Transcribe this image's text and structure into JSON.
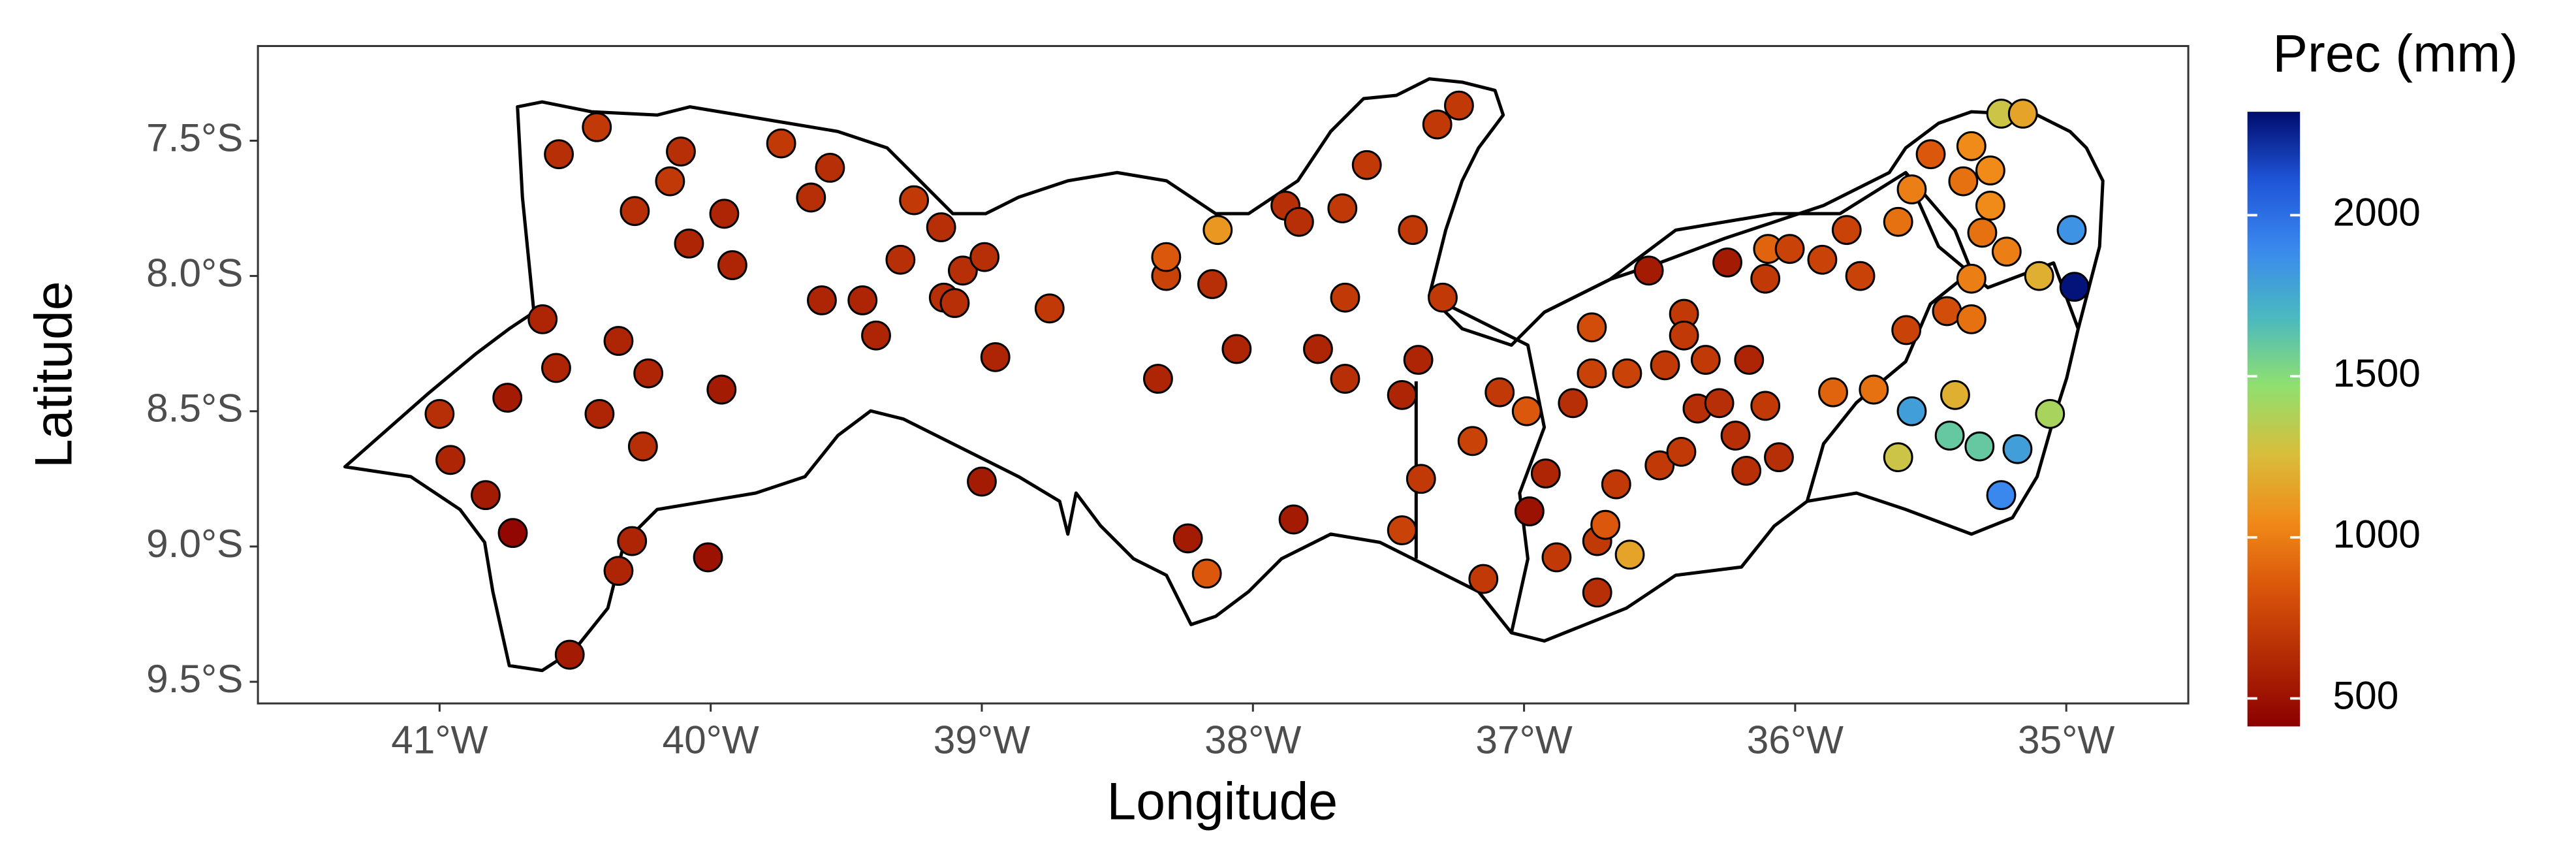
{
  "chart_data": {
    "type": "scatter",
    "x_label": "Longitude",
    "y_label": "Latitude",
    "xlim": [
      -41.67,
      -34.55
    ],
    "ylim": [
      -9.58,
      -7.15
    ],
    "xticks": [
      {
        "value": -41,
        "label": "41°W"
      },
      {
        "value": -40,
        "label": "40°W"
      },
      {
        "value": -39,
        "label": "39°W"
      },
      {
        "value": -38,
        "label": "38°W"
      },
      {
        "value": -37,
        "label": "37°W"
      },
      {
        "value": -36,
        "label": "36°W"
      },
      {
        "value": -35,
        "label": "35°W"
      }
    ],
    "yticks": [
      {
        "value": -7.5,
        "label": "7.5°S"
      },
      {
        "value": -8,
        "label": "8.0°S"
      },
      {
        "value": -8.5,
        "label": "8.5°S"
      },
      {
        "value": -9,
        "label": "9.0°S"
      },
      {
        "value": -9.5,
        "label": "9.5°S"
      }
    ],
    "grid": true,
    "colorbar": {
      "title": "Prec (mm)",
      "lim": [
        413,
        2321
      ],
      "ticks": [
        500,
        1000,
        1500,
        2000
      ],
      "colors": [
        "#8b0000",
        "#b22a05",
        "#d9540a",
        "#f08a18",
        "#d8be3c",
        "#8fe070",
        "#4ab8c0",
        "#3a88ee",
        "#1f55d8",
        "#000c6e"
      ]
    },
    "x": [
      -41.0,
      -40.96,
      -40.83,
      -40.73,
      -40.75,
      -40.62,
      -40.57,
      -40.56,
      -40.42,
      -40.41,
      -40.52,
      -40.34,
      -40.34,
      -40.29,
      -40.28,
      -40.23,
      -40.25,
      -40.15,
      -40.11,
      -40.08,
      -39.96,
      -39.95,
      -39.92,
      -40.01,
      -39.74,
      -39.63,
      -39.56,
      -39.59,
      -39.44,
      -39.39,
      -39.3,
      -39.25,
      -39.15,
      -39.14,
      -39.1,
      -39.07,
      -38.99,
      -38.95,
      -39.0,
      -38.75,
      -38.35,
      -38.32,
      -38.32,
      -38.13,
      -38.15,
      -38.06,
      -38.24,
      -38.17,
      -37.88,
      -37.83,
      -37.76,
      -37.67,
      -37.66,
      -37.66,
      -37.58,
      -37.41,
      -37.39,
      -37.45,
      -37.32,
      -37.24,
      -37.3,
      -37.38,
      -37.45,
      -37.85,
      -37.19,
      -37.09,
      -37.15,
      -36.98,
      -36.99,
      -36.92,
      -36.88,
      -36.82,
      -36.75,
      -36.75,
      -36.73,
      -36.7,
      -36.73,
      -36.66,
      -36.62,
      -36.61,
      -36.54,
      -36.5,
      -36.48,
      -36.42,
      -36.41,
      -36.41,
      -36.36,
      -36.33,
      -36.28,
      -36.25,
      -36.22,
      -36.18,
      -36.17,
      -36.11,
      -36.1,
      -36.11,
      -36.06,
      -36.02,
      -35.9,
      -35.86,
      -35.81,
      -35.76,
      -35.71,
      -35.62,
      -35.62,
      -35.59,
      -35.57,
      -35.5,
      -35.57,
      -35.44,
      -35.43,
      -35.41,
      -35.38,
      -35.35,
      -35.35,
      -35.32,
      -35.35,
      -35.31,
      -35.28,
      -35.28,
      -35.24,
      -35.18,
      -35.24,
      -35.22,
      -35.16,
      -35.1,
      -35.06,
      -34.98,
      -34.97
    ],
    "y": [
      -8.51,
      -8.68,
      -8.81,
      -8.95,
      -8.45,
      -8.16,
      -8.34,
      -7.55,
      -7.45,
      -8.51,
      -9.4,
      -8.24,
      -9.09,
      -8.98,
      -7.76,
      -8.36,
      -8.63,
      -7.65,
      -7.54,
      -7.88,
      -8.42,
      -7.77,
      -7.96,
      -9.04,
      -7.51,
      -7.71,
      -7.6,
      -8.09,
      -8.09,
      -8.22,
      -7.94,
      -7.72,
      -7.82,
      -8.08,
      -8.1,
      -7.98,
      -7.93,
      -8.3,
      -8.76,
      -8.12,
      -8.38,
      -8.0,
      -7.93,
      -7.83,
      -8.03,
      -8.27,
      -8.97,
      -9.1,
      -7.74,
      -7.8,
      -8.27,
      -7.75,
      -8.08,
      -8.38,
      -7.59,
      -7.83,
      -8.31,
      -8.44,
      -7.44,
      -7.37,
      -8.08,
      -8.75,
      -8.94,
      -8.9,
      -8.61,
      -8.43,
      -9.12,
      -8.87,
      -8.5,
      -8.73,
      -9.04,
      -8.47,
      -8.19,
      -8.36,
      -8.98,
      -8.92,
      -9.17,
      -8.77,
      -8.36,
      -9.03,
      -7.98,
      -8.7,
      -8.33,
      -8.65,
      -8.14,
      -8.22,
      -8.49,
      -8.31,
      -8.47,
      -7.95,
      -8.59,
      -8.72,
      -8.31,
      -8.48,
      -7.9,
      -8.01,
      -8.67,
      -7.9,
      -7.94,
      -8.43,
      -7.83,
      -8.0,
      -8.42,
      -8.67,
      -7.8,
      -8.2,
      -7.68,
      -7.55,
      -8.5,
      -8.13,
      -8.59,
      -8.44,
      -7.65,
      -7.52,
      -8.16,
      -8.63,
      -8.01,
      -7.84,
      -7.61,
      -7.74,
      -7.4,
      -8.64,
      -8.81,
      -7.91,
      -7.4,
      -8.0,
      -8.51,
      -7.83,
      -8.04
    ],
    "values": [
      650,
      600,
      550,
      450,
      550,
      600,
      600,
      650,
      700,
      600,
      550,
      600,
      600,
      600,
      650,
      600,
      650,
      700,
      650,
      600,
      550,
      600,
      600,
      500,
      700,
      650,
      650,
      600,
      600,
      600,
      650,
      700,
      650,
      650,
      650,
      650,
      650,
      600,
      550,
      700,
      600,
      750,
      850,
      1100,
      650,
      600,
      550,
      850,
      650,
      650,
      600,
      700,
      700,
      650,
      700,
      700,
      600,
      600,
      700,
      700,
      700,
      700,
      750,
      550,
      750,
      700,
      700,
      500,
      850,
      600,
      700,
      650,
      800,
      750,
      700,
      850,
      650,
      700,
      750,
      1150,
      550,
      700,
      700,
      700,
      700,
      700,
      650,
      700,
      650,
      550,
      650,
      650,
      600,
      700,
      900,
      700,
      650,
      750,
      750,
      900,
      750,
      750,
      950,
      1300,
      950,
      750,
      1000,
      850,
      1800,
      800,
      1600,
      1200,
      950,
      1050,
      950,
      1600,
      1000,
      950,
      1050,
      1050,
      1300,
      1800,
      1900,
      1000,
      1150,
      1200,
      1400,
      1850,
      2300
    ]
  }
}
